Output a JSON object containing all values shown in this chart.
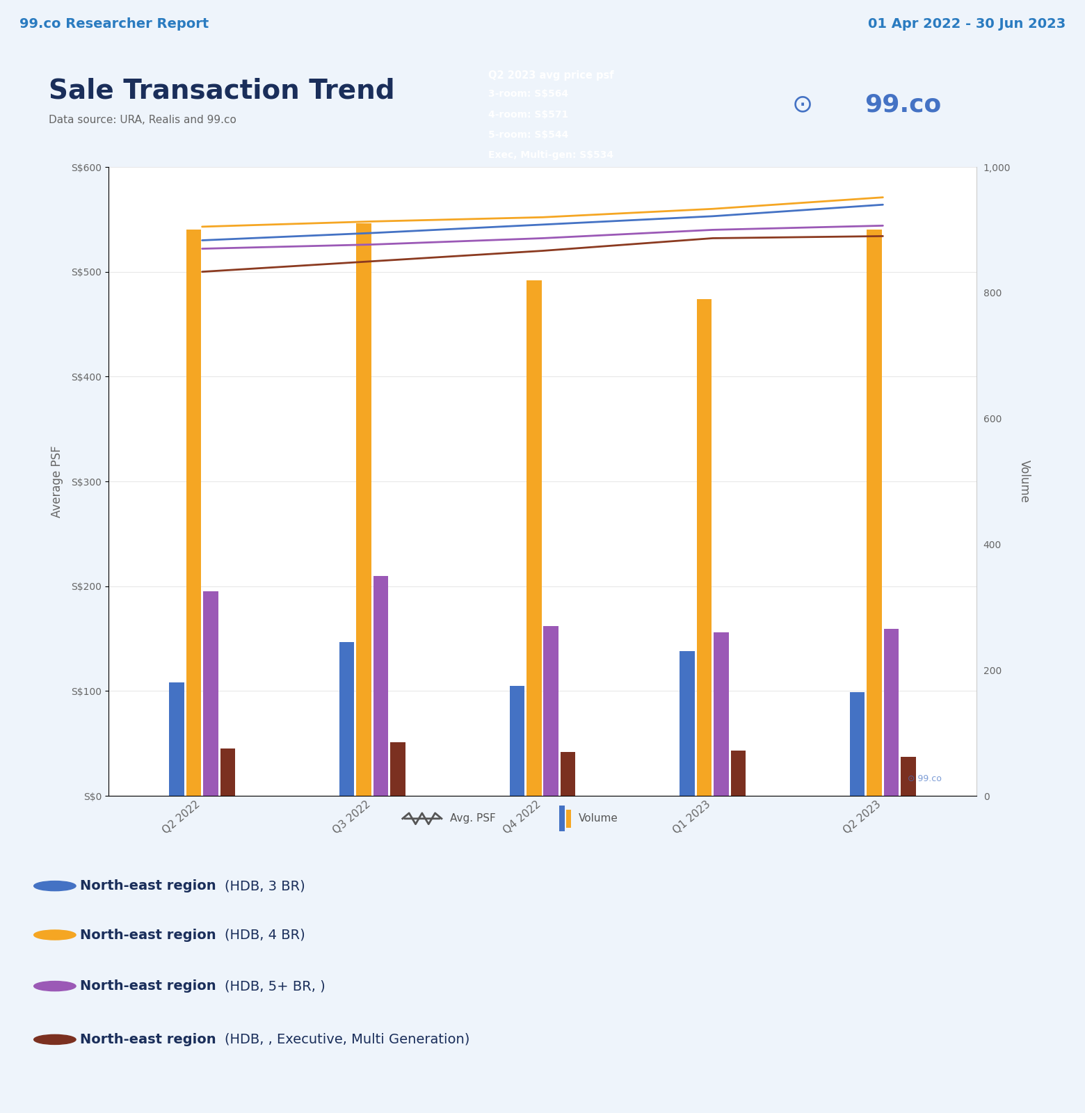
{
  "quarters": [
    "Q2 2022",
    "Q3 2022",
    "Q4 2022",
    "Q1 2023",
    "Q2 2023"
  ],
  "header_bg": "#dce9f5",
  "header_text_left": "99.co Researcher Report",
  "header_text_right": "01 Apr 2022 - 30 Jun 2023",
  "header_color": "#2a7bc0",
  "title": "Sale Transaction Trend",
  "subtitle": "Data source: URA, Realis and 99.co",
  "title_color": "#1a2e5a",
  "subtitle_color": "#666666",
  "bg_color": "#eef4fb",
  "plot_bg": "#ffffff",
  "avg_psf": {
    "3br": [
      530,
      537,
      545,
      553,
      564
    ],
    "4br": [
      543,
      548,
      552,
      560,
      571
    ],
    "5br": [
      522,
      526,
      532,
      540,
      544
    ],
    "exec": [
      500,
      510,
      520,
      532,
      534
    ]
  },
  "volume": {
    "3br": [
      180,
      245,
      175,
      230,
      165
    ],
    "4br": [
      900,
      910,
      820,
      790,
      900
    ],
    "5br": [
      325,
      350,
      270,
      260,
      265
    ],
    "exec": [
      75,
      85,
      70,
      72,
      62
    ]
  },
  "colors": {
    "3br": "#4472c4",
    "4br": "#f5a623",
    "5br": "#9b59b6",
    "exec": "#7b3020"
  },
  "line_colors": {
    "3br": "#4472c4",
    "4br": "#f5a623",
    "5br": "#9b59b6",
    "exec": "#8b3a20"
  },
  "psf_ylim": [
    0,
    600
  ],
  "psf_yticks": [
    0,
    100,
    200,
    300,
    400,
    500,
    600
  ],
  "vol_ylim": [
    0,
    1000
  ],
  "vol_yticks": [
    0,
    200,
    400,
    600,
    800,
    1000
  ],
  "ylabel_left": "Average PSF",
  "ylabel_right": "Volume",
  "info_box_bg": "#1a3668",
  "info_box_title": "Q2 2023 avg price psf",
  "info_box_lines": [
    "3-room: S$564",
    "4-room: S$571",
    "5-room: S$544",
    "Exec, Multi-gen: S$534"
  ],
  "info_text_color": "#ffffff",
  "legend_entries": [
    {
      "label": "North-east region",
      "suffix": "(HDB, 3 BR)",
      "color": "#4472c4"
    },
    {
      "label": "North-east region",
      "suffix": "(HDB, 4 BR)",
      "color": "#f5a623"
    },
    {
      "label": "North-east region",
      "suffix": "(HDB, 5+ BR, )",
      "color": "#9b59b6"
    },
    {
      "label": "North-east region",
      "suffix": "(HDB, , Executive, Multi Generation)",
      "color": "#7b3020"
    }
  ]
}
